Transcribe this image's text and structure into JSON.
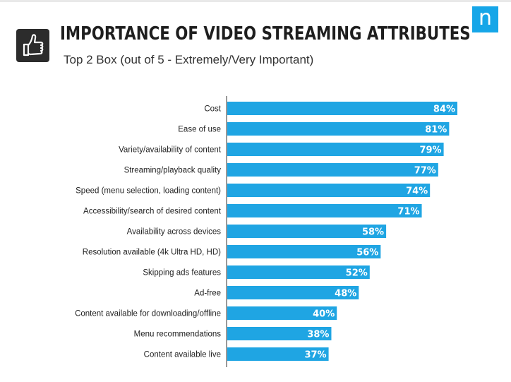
{
  "header": {
    "title": "IMPORTANCE OF VIDEO STREAMING ATTRIBUTES",
    "subtitle": "Top 2 Box (out of 5 - Extremely/Very Important)",
    "logo_letter": "n",
    "badge_icon": "thumbs-up-icon"
  },
  "colors": {
    "bar": "#1fa5e3",
    "axis": "#333333",
    "logo": "#16a6e8",
    "badge": "#2c2c2c"
  },
  "chart_data": {
    "type": "bar",
    "orientation": "horizontal",
    "categories": [
      "Cost",
      "Ease of use",
      "Variety/availability of content",
      "Streaming/playback quality",
      "Speed (menu selection, loading content)",
      "Accessibility/search of desired content",
      "Availability across devices",
      "Resolution available (4k Ultra HD, HD)",
      "Skipping ads features",
      "Ad-free",
      "Content available for downloading/offline",
      "Menu recommendations",
      "Content available live"
    ],
    "values": [
      84,
      81,
      79,
      77,
      74,
      71,
      58,
      56,
      52,
      48,
      40,
      38,
      37
    ],
    "data_labels": [
      "84%",
      "81%",
      "79%",
      "77%",
      "74%",
      "71%",
      "58%",
      "56%",
      "52%",
      "48%",
      "40%",
      "38%",
      "37%"
    ],
    "xlim": [
      0,
      84
    ],
    "grid": false,
    "legend": "none",
    "title": "",
    "xlabel": "",
    "ylabel": ""
  }
}
